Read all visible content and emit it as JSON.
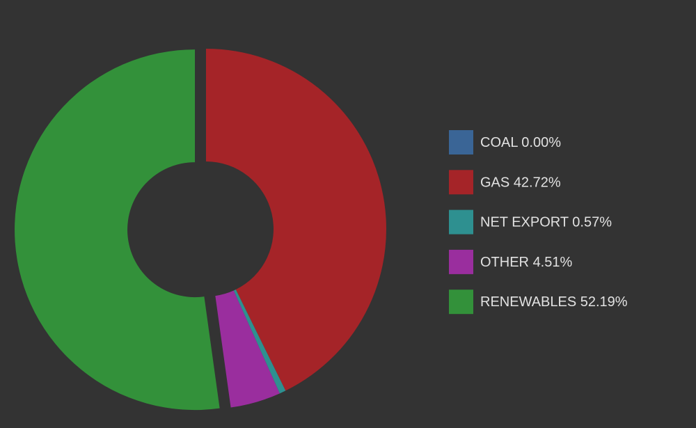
{
  "chart_data": {
    "type": "donut",
    "categories": [
      "COAL",
      "GAS",
      "NET EXPORT",
      "OTHER",
      "RENEWABLES"
    ],
    "values": [
      0.0,
      42.72,
      0.57,
      4.51,
      52.19
    ],
    "value_labels": [
      "0.00%",
      "42.72%",
      "0.57%",
      "4.51%",
      "52.19%"
    ],
    "colors": [
      "#3a6596",
      "#a52428",
      "#2e9090",
      "#9a2e9e",
      "#33913a"
    ],
    "legend": "right"
  }
}
